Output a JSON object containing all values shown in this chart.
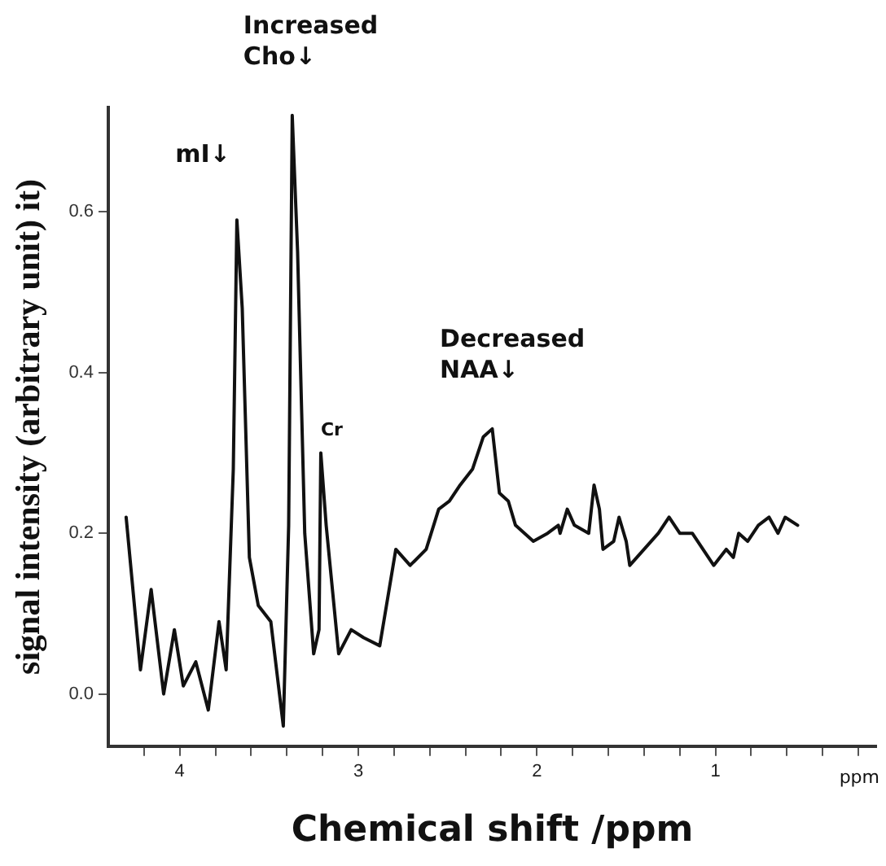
{
  "chart_data": {
    "type": "line",
    "xlabel": "Chemical shift /ppm",
    "ylabel": "signal intensity (arbitrary unit) it)",
    "x": [
      4.3,
      4.22,
      4.16,
      4.09,
      4.03,
      3.98,
      3.91,
      3.84,
      3.78,
      3.74,
      3.7,
      3.68,
      3.65,
      3.61,
      3.56,
      3.49,
      3.42,
      3.39,
      3.37,
      3.34,
      3.3,
      3.25,
      3.22,
      3.21,
      3.18,
      3.11,
      3.04,
      2.97,
      2.88,
      2.79,
      2.71,
      2.62,
      2.55,
      2.49,
      2.43,
      2.36,
      2.3,
      2.25,
      2.21,
      2.16,
      2.12,
      2.02,
      1.94,
      1.88,
      1.87,
      1.83,
      1.79,
      1.71,
      1.68,
      1.65,
      1.63,
      1.57,
      1.54,
      1.5,
      1.48,
      1.4,
      1.32,
      1.26,
      1.2,
      1.13,
      1.01,
      0.94,
      0.9,
      0.87,
      0.82,
      0.76,
      0.7,
      0.65,
      0.61,
      0.54
    ],
    "series": [
      {
        "color": "#111111",
        "values": [
          0.22,
          0.03,
          0.13,
          0.0,
          0.08,
          0.01,
          0.04,
          -0.02,
          0.09,
          0.03,
          0.28,
          0.59,
          0.48,
          0.17,
          0.11,
          0.09,
          -0.04,
          0.21,
          0.72,
          0.55,
          0.2,
          0.05,
          0.08,
          0.3,
          0.21,
          0.05,
          0.08,
          0.07,
          0.06,
          0.18,
          0.16,
          0.18,
          0.23,
          0.24,
          0.26,
          0.28,
          0.32,
          0.33,
          0.25,
          0.24,
          0.21,
          0.19,
          0.2,
          0.21,
          0.2,
          0.23,
          0.21,
          0.2,
          0.26,
          0.23,
          0.18,
          0.19,
          0.22,
          0.19,
          0.16,
          0.18,
          0.2,
          0.22,
          0.2,
          0.2,
          0.16,
          0.18,
          0.17,
          0.2,
          0.19,
          0.21,
          0.22,
          0.2,
          0.22,
          0.21
        ]
      }
    ],
    "xlim": [
      4.4,
      0.1
    ],
    "xticks": [
      {
        "value": 4.2,
        "label": null
      },
      4,
      {
        "value": 3.8,
        "label": null
      },
      {
        "value": 3.6,
        "label": null
      },
      {
        "value": 3.4,
        "label": null
      },
      {
        "value": 3.2,
        "label": null
      },
      3,
      {
        "value": 2.8,
        "label": null
      },
      {
        "value": 2.6,
        "label": null
      },
      {
        "value": 2.4,
        "label": null
      },
      {
        "value": 2.2,
        "label": null
      },
      2,
      {
        "value": 1.8,
        "label": null
      },
      {
        "value": 1.6,
        "label": null
      },
      {
        "value": 1.4,
        "label": null
      },
      {
        "value": 1.2,
        "label": null
      },
      1,
      {
        "value": 0.8,
        "label": null
      },
      {
        "value": 0.6,
        "label": null
      },
      {
        "value": 0.4,
        "label": null
      },
      {
        "value": 0.2,
        "label": null
      }
    ],
    "ylim": [
      -0.065,
      0.73
    ],
    "yticks": [
      {
        "value": 0,
        "label": "0.0"
      },
      0.2,
      0.4,
      0.6
    ],
    "grid": false,
    "legend": false,
    "marker": "none",
    "line_style": "solid",
    "annotations": [
      {
        "text": "mI↓",
        "x": 3.68,
        "y": 0.59
      },
      {
        "text": "Increased\nCho↓",
        "x": 3.37,
        "y": 0.72
      },
      {
        "text": "Cr",
        "x": 3.21,
        "y": 0.3
      },
      {
        "text": "Decreased\nNAA↓",
        "x": 2.27,
        "y": 0.33
      },
      "ppm"
    ]
  }
}
